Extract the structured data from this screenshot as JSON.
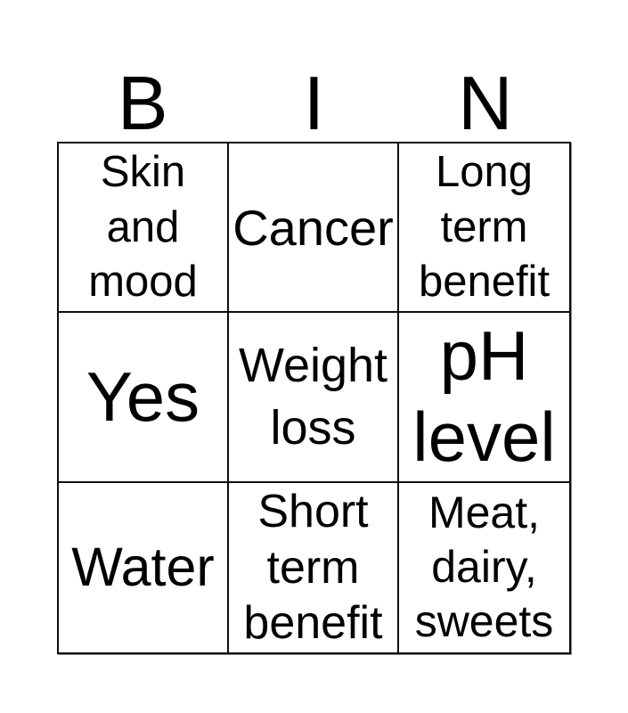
{
  "page": {
    "background": "#ffffff",
    "text_color": "#000000",
    "border_color": "#000000"
  },
  "bingo_card": {
    "header_letters": [
      "B",
      "I",
      "N"
    ],
    "grid": {
      "rows": [
        {
          "cells": [
            "Skin and mood",
            "Cancer",
            "Long term benefit"
          ]
        },
        {
          "cells": [
            "Yes",
            "Weight loss",
            "pH level"
          ]
        },
        {
          "cells": [
            "Water",
            "Short term benefit",
            "Meat, dairy, sweets"
          ]
        }
      ]
    }
  }
}
